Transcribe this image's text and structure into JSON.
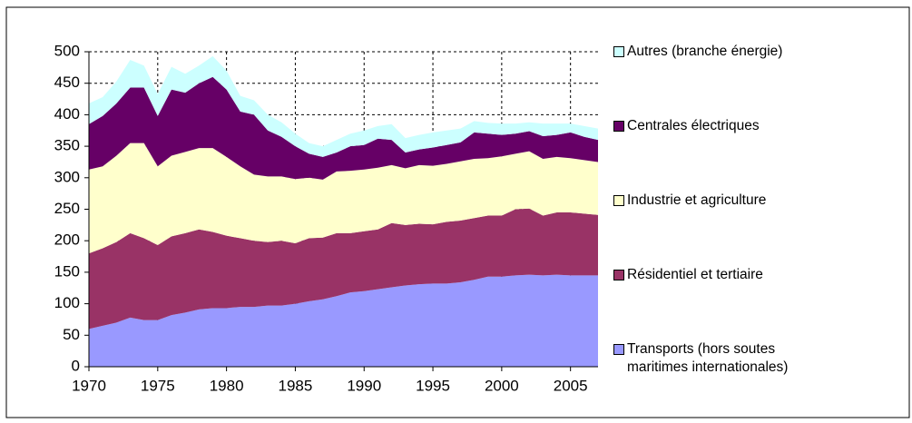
{
  "chart_data": {
    "type": "stacked_area",
    "x": [
      1970,
      1971,
      1972,
      1973,
      1974,
      1975,
      1976,
      1977,
      1978,
      1979,
      1980,
      1981,
      1982,
      1983,
      1984,
      1985,
      1986,
      1987,
      1988,
      1989,
      1990,
      1991,
      1992,
      1993,
      1994,
      1995,
      1996,
      1997,
      1998,
      1999,
      2000,
      2001,
      2002,
      2003,
      2004,
      2005,
      2006,
      2007
    ],
    "series": [
      {
        "name": "Transports (hors soutes maritimes internationales)",
        "color": "#9999ff",
        "values": [
          60,
          65,
          70,
          78,
          74,
          74,
          82,
          86,
          91,
          93,
          93,
          95,
          95,
          97,
          97,
          100,
          104,
          107,
          112,
          118,
          120,
          123,
          126,
          129,
          131,
          132,
          132,
          134,
          138,
          143,
          143,
          145,
          146,
          145,
          146,
          145,
          145,
          145
        ]
      },
      {
        "name": "Résidentiel et tertiaire",
        "color": "#993366",
        "values": [
          120,
          123,
          128,
          134,
          130,
          119,
          125,
          126,
          127,
          121,
          115,
          109,
          105,
          101,
          103,
          96,
          100,
          98,
          100,
          94,
          95,
          95,
          102,
          96,
          96,
          94,
          98,
          98,
          98,
          97,
          97,
          105,
          105,
          95,
          99,
          100,
          98,
          96
        ]
      },
      {
        "name": "Industrie et agriculture",
        "color": "#ffffcc",
        "values": [
          133,
          130,
          137,
          143,
          151,
          125,
          128,
          129,
          129,
          133,
          125,
          114,
          105,
          104,
          102,
          102,
          96,
          92,
          98,
          99,
          98,
          98,
          92,
          90,
          93,
          93,
          92,
          94,
          94,
          91,
          94,
          88,
          91,
          90,
          88,
          86,
          85,
          84
        ]
      },
      {
        "name": "Centrales électriques",
        "color": "#660066",
        "values": [
          72,
          80,
          83,
          88,
          88,
          80,
          105,
          94,
          103,
          113,
          107,
          87,
          95,
          73,
          63,
          52,
          38,
          36,
          30,
          39,
          39,
          46,
          40,
          25,
          25,
          29,
          30,
          30,
          42,
          39,
          34,
          32,
          32,
          36,
          35,
          41,
          37,
          35
        ]
      },
      {
        "name": "Autres (branche énergie)",
        "color": "#ccffff",
        "values": [
          33,
          30,
          35,
          44,
          35,
          35,
          36,
          30,
          28,
          33,
          30,
          25,
          23,
          25,
          23,
          20,
          17,
          17,
          20,
          20,
          23,
          20,
          25,
          23,
          23,
          24,
          23,
          22,
          18,
          17,
          18,
          16,
          14,
          20,
          18,
          14,
          17,
          18
        ]
      }
    ],
    "xlim": [
      1970,
      2007
    ],
    "xticks": [
      1970,
      1975,
      1980,
      1985,
      1990,
      1995,
      2000,
      2005
    ],
    "ylim": [
      0,
      500
    ],
    "yticks": [
      0,
      50,
      100,
      150,
      200,
      250,
      300,
      350,
      400,
      450,
      500
    ],
    "grid": true,
    "legend": "right"
  }
}
